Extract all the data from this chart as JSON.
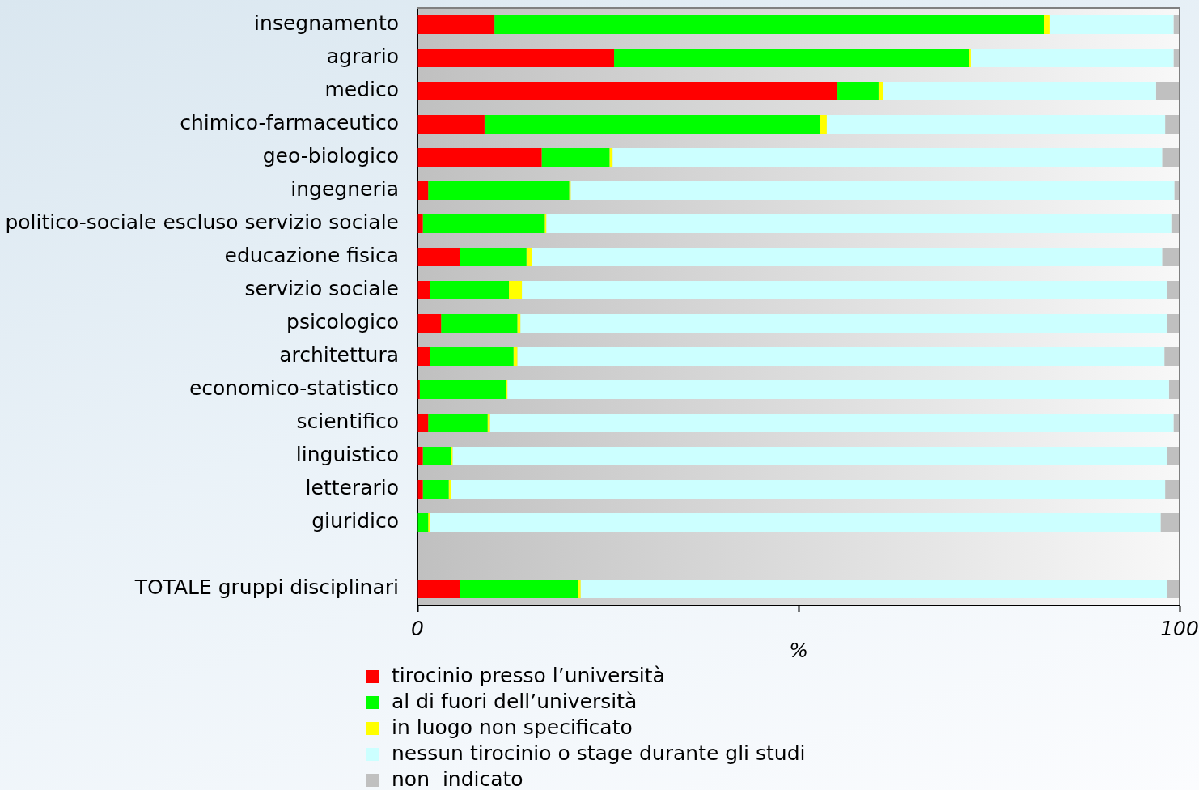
{
  "chart_data": {
    "type": "bar",
    "orientation": "horizontal",
    "stacked": true,
    "categories": [
      "insegnamento",
      "agrario",
      "medico",
      "chimico-farmaceutico",
      "geo-biologico",
      "ingegneria",
      "politico-sociale escluso servizio sociale",
      "educazione fisica",
      "servizio sociale",
      "psicologico",
      "architettura",
      "economico-statistico",
      "scientifico",
      "linguistico",
      "letterario",
      "giuridico",
      null,
      "TOTALE gruppi disciplinari"
    ],
    "series": [
      {
        "name": "tirocinio presso l’università",
        "color": "#ff0000",
        "values": [
          10.1,
          25.8,
          55.1,
          8.8,
          16.3,
          1.4,
          0.7,
          5.6,
          1.6,
          3.1,
          1.6,
          0.3,
          1.4,
          0.7,
          0.7,
          0,
          null,
          5.6
        ]
      },
      {
        "name": "al di fuori dell’università",
        "color": "#00ff00",
        "values": [
          72.1,
          46.6,
          5.4,
          44.0,
          8.9,
          18.5,
          16.0,
          8.7,
          10.4,
          10.0,
          11.0,
          11.3,
          7.8,
          3.7,
          3.4,
          1.4,
          null,
          15.5
        ]
      },
      {
        "name": "in luogo non specificato",
        "color": "#ffff00",
        "values": [
          0.8,
          0.2,
          0.6,
          0.9,
          0.4,
          0.2,
          0.2,
          0.7,
          1.7,
          0.4,
          0.5,
          0.2,
          0.3,
          0.2,
          0.3,
          0.2,
          null,
          0.3
        ]
      },
      {
        "name": "nessun tirocinio o stage durante gli studi",
        "color": "#ccffff",
        "values": [
          16.2,
          26.6,
          35.8,
          44.4,
          72.1,
          79.2,
          82.1,
          82.7,
          84.6,
          84.8,
          84.9,
          86.8,
          89.7,
          93.7,
          93.7,
          95.9,
          null,
          76.9
        ]
      },
      {
        "name": "non  indicato",
        "color": "#c0c0c0",
        "values": [
          0.8,
          0.8,
          3.1,
          1.9,
          2.3,
          0.7,
          1.0,
          2.3,
          1.7,
          1.7,
          2.0,
          1.4,
          0.8,
          1.7,
          1.9,
          2.5,
          null,
          1.7
        ]
      }
    ],
    "xlim": [
      0,
      100
    ],
    "xticks": [
      0,
      {
        "value": 50,
        "label": null
      },
      100
    ],
    "xlabel": "%",
    "grid": false,
    "legend": "bottom"
  }
}
